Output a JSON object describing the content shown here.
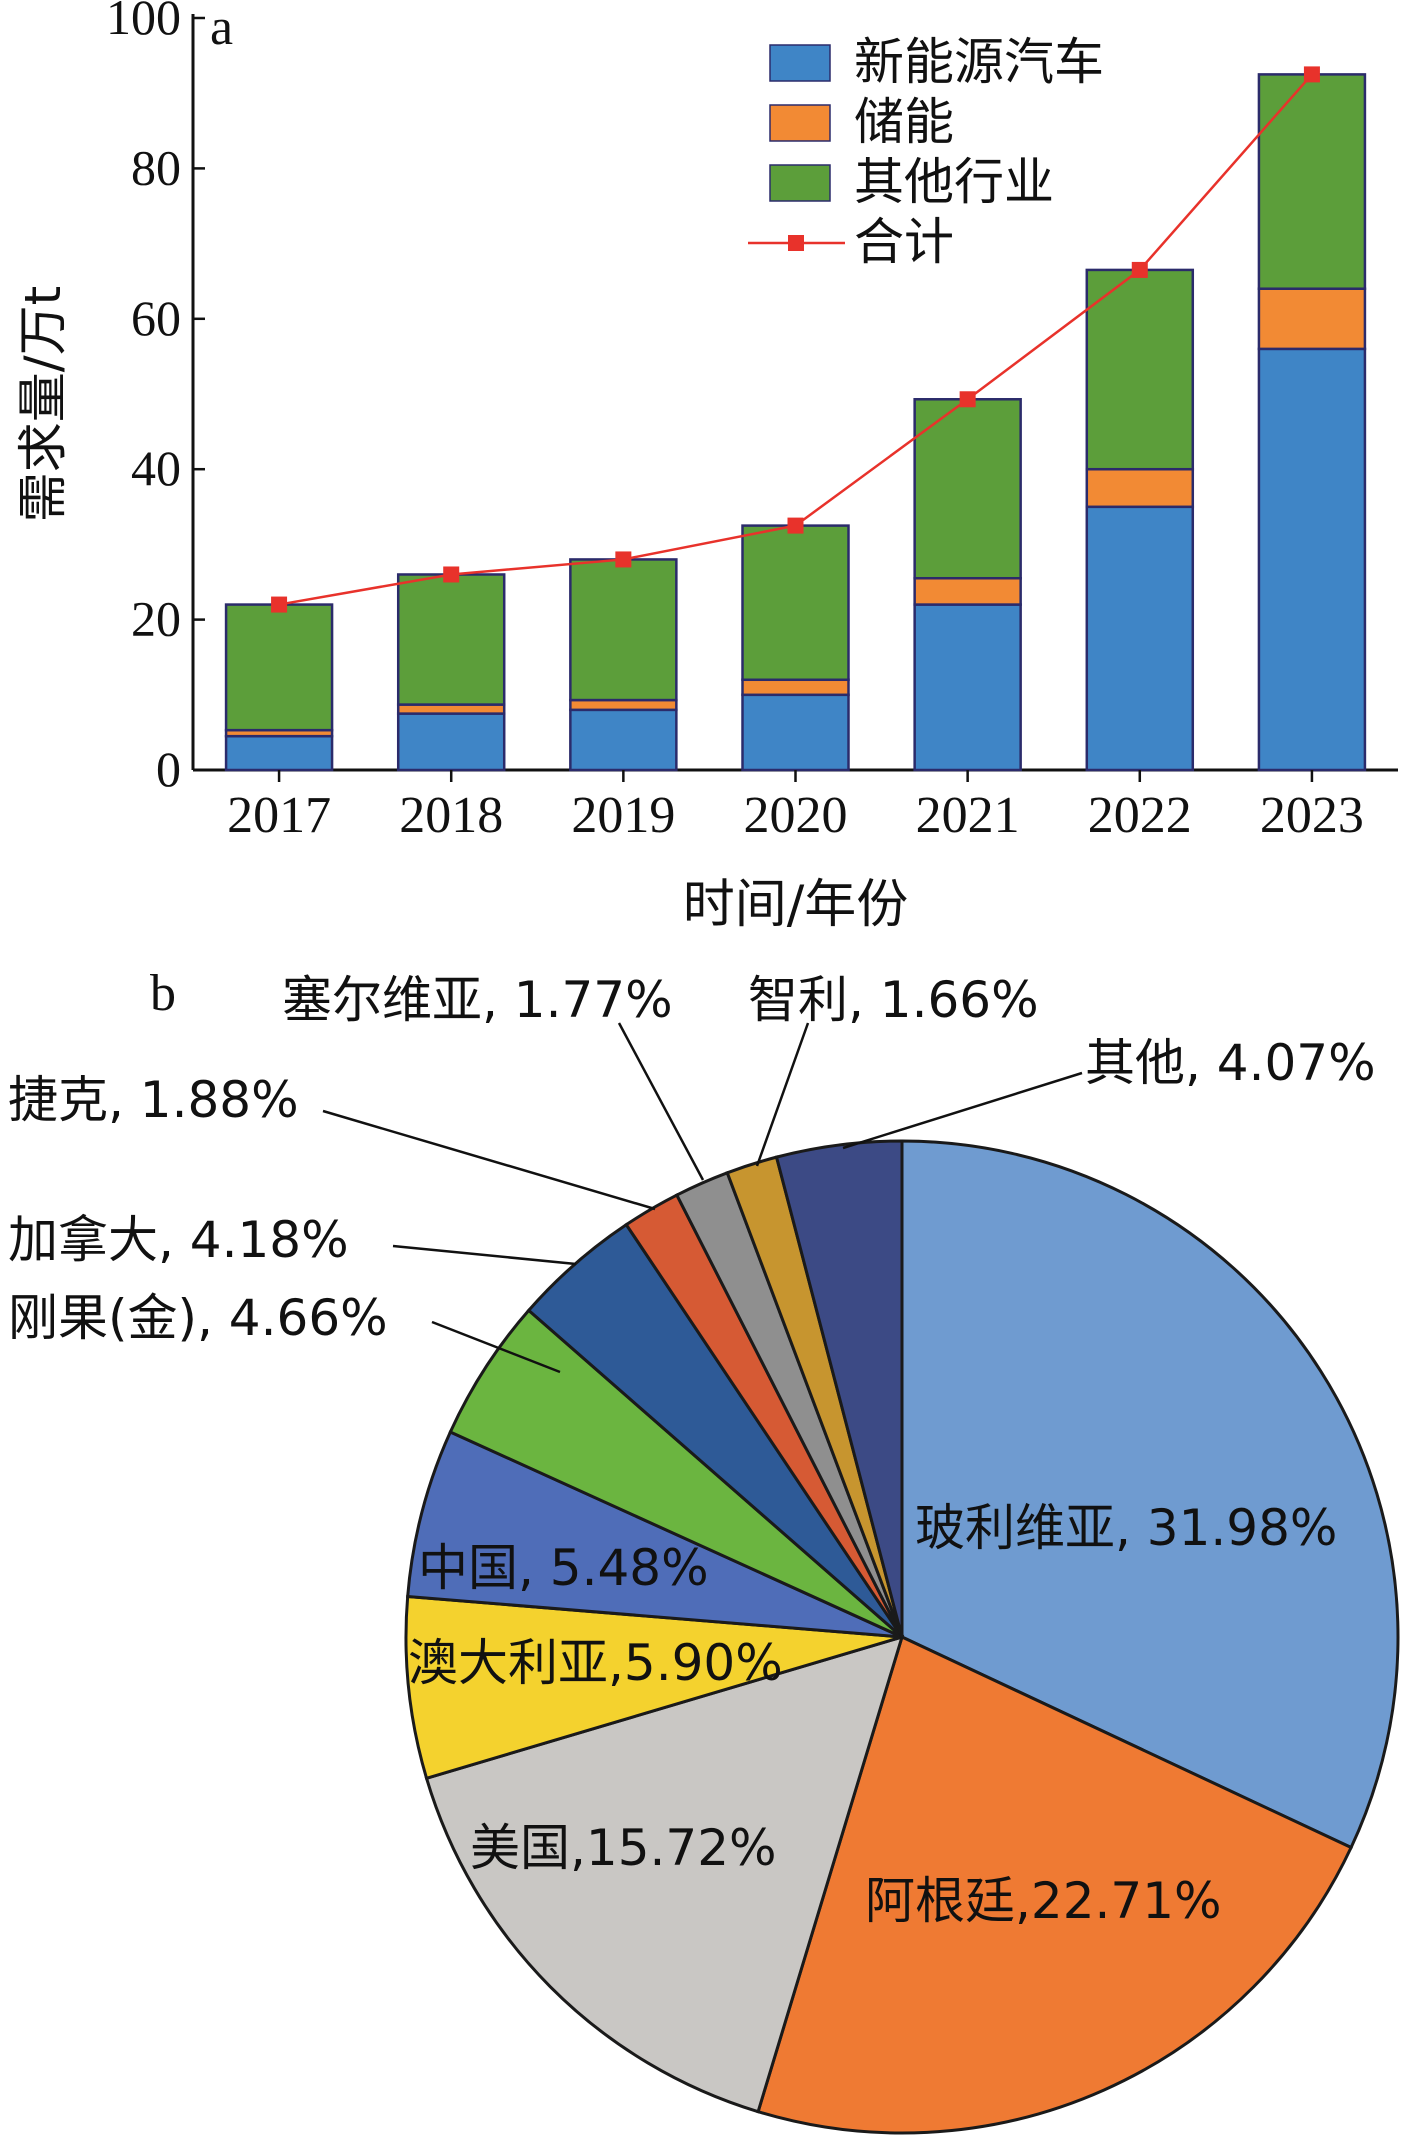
{
  "chart_data": [
    {
      "panel_label": "a",
      "type": "bar",
      "stacked": true,
      "categories": [
        "2017",
        "2018",
        "2019",
        "2020",
        "2021",
        "2022",
        "2023"
      ],
      "series": [
        {
          "name": "新能源汽车",
          "color": "#3f85c6",
          "values": [
            4.5,
            7.5,
            8.0,
            10.0,
            22.0,
            35.0,
            56.0
          ]
        },
        {
          "name": "储能",
          "color": "#f28a34",
          "values": [
            0.8,
            1.2,
            1.3,
            2.0,
            3.5,
            5.0,
            8.0
          ]
        },
        {
          "name": "其他行业",
          "color": "#5c9e3a",
          "values": [
            16.7,
            17.3,
            18.7,
            20.5,
            23.8,
            26.5,
            28.5
          ]
        },
        {
          "name": "合计",
          "type": "line",
          "color": "#e8322b",
          "values": [
            22.0,
            26.0,
            28.0,
            32.5,
            49.3,
            66.5,
            92.5
          ]
        }
      ],
      "xlabel": "时间/年份",
      "ylabel": "需求量/万t",
      "ylim": [
        0,
        100
      ],
      "yticks": [
        "0",
        "20",
        "40",
        "60",
        "80",
        "100"
      ],
      "legend_position": "top-left",
      "grid": false
    },
    {
      "panel_label": "b",
      "type": "pie",
      "slices": [
        {
          "label": "玻利维亚, 31.98%",
          "value": 31.98,
          "color": "#6f9bd0"
        },
        {
          "label": "阿根廷,22.71%",
          "value": 22.71,
          "color": "#ef7a33"
        },
        {
          "label": "美国,15.72%",
          "value": 15.72,
          "color": "#c9c7c4"
        },
        {
          "label": "澳大利亚,5.90%",
          "value": 5.9,
          "color": "#f4d22e"
        },
        {
          "label": "中国, 5.48%",
          "value": 5.48,
          "color": "#4f6db8"
        },
        {
          "label": "刚果(金), 4.66%",
          "value": 4.66,
          "color": "#6bb540"
        },
        {
          "label": "加拿大, 4.18%",
          "value": 4.18,
          "color": "#2e5a97"
        },
        {
          "label": "捷克, 1.88%",
          "value": 1.88,
          "color": "#d65a34"
        },
        {
          "label": "塞尔维亚, 1.77%",
          "value": 1.77,
          "color": "#8f8f8f"
        },
        {
          "label": "智利, 1.66%",
          "value": 1.66,
          "color": "#c7952f"
        },
        {
          "label": "其他, 4.07%",
          "value": 4.07,
          "color": "#3c4a85"
        }
      ]
    }
  ]
}
